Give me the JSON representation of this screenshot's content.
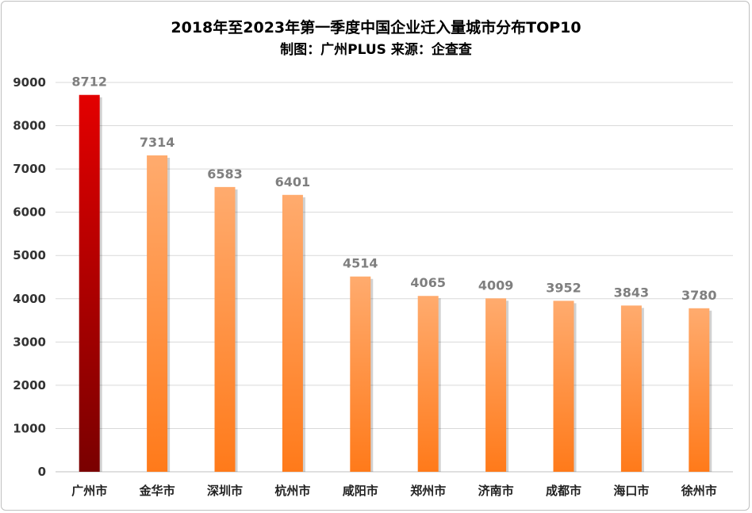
{
  "chart_data": {
    "type": "bar",
    "title": "2018年至2023年第一季度中国企业迁入量城市分布TOP10",
    "subtitle": "制图：广州PLUS 来源：企查查",
    "xlabel": "",
    "ylabel": "",
    "ylim": [
      0,
      9000
    ],
    "yticks": [
      0,
      1000,
      2000,
      3000,
      4000,
      5000,
      6000,
      7000,
      8000,
      9000
    ],
    "grid": true,
    "categories": [
      "广州市",
      "金华市",
      "深圳市",
      "杭州市",
      "咸阳市",
      "郑州市",
      "济南市",
      "成都市",
      "海口市",
      "徐州市"
    ],
    "values": [
      8712,
      7314,
      6583,
      6401,
      4514,
      4065,
      4009,
      3952,
      3843,
      3780
    ],
    "colors": {
      "highlight_top": "#e30000",
      "highlight_bottom": "#7a0000",
      "bar_top": "#ffab6e",
      "bar_bottom": "#ff7a1a",
      "value_label": "#7f7f7f",
      "grid": "#d9d9d9"
    }
  }
}
